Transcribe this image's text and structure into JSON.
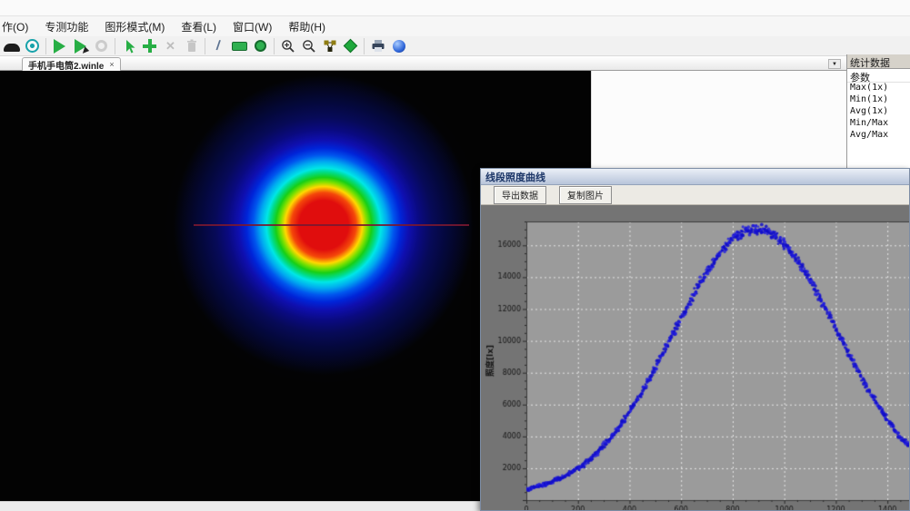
{
  "menu": {
    "items": [
      {
        "label": "作(O)"
      },
      {
        "label": "专测功能"
      },
      {
        "label": "图形模式(M)"
      },
      {
        "label": "查看(L)"
      },
      {
        "label": "窗口(W)"
      },
      {
        "label": "帮助(H)"
      }
    ]
  },
  "toolbar": {
    "icons": [
      "device-icon",
      "record-target-icon",
      "play-icon",
      "play-cursor-icon",
      "stop-icon",
      "cursor-arrow-icon",
      "plus-icon",
      "x-icon",
      "trash-icon",
      "line-tool-icon",
      "rectangle-tool-icon",
      "ellipse-tool-icon",
      "zoom-in-icon",
      "zoom-out-icon",
      "grid-3d-icon",
      "diamond-icon",
      "printer-icon",
      "globe-icon"
    ]
  },
  "tabbar": {
    "tab": {
      "label": "手机手电筒2.winle",
      "close": "×"
    }
  },
  "stats": {
    "title": "统计数据",
    "column_header": "参数",
    "rows": [
      "Max(1x)",
      "Min(1x)",
      "Avg(1x)",
      "Min/Max",
      "Avg/Max"
    ]
  },
  "beam_view": {
    "background": "#000000",
    "colormap": [
      "#ff0000",
      "#ff8000",
      "#ffff00",
      "#00c800",
      "#00ffff",
      "#0055ee",
      "#0000a0"
    ],
    "profile_line_color": "#7a1830"
  },
  "float_window": {
    "title": "线段照度曲线",
    "buttons": [
      {
        "label": "导出数据"
      },
      {
        "label": "复制图片"
      }
    ]
  },
  "colors": {
    "chart_background": "#747474",
    "plot_background": "#9b9b9b",
    "grid": "#ffffff",
    "scatter": "#1a12c8",
    "window_titlebar": "#b7c4da"
  },
  "chart_data": {
    "type": "scatter",
    "title": "线段照度曲线",
    "xlabel": "",
    "ylabel": "照度[lx]",
    "xlim": [
      0,
      1484
    ],
    "ylim": [
      0,
      17500
    ],
    "x_ticks": [
      0,
      200,
      400,
      600,
      800,
      1000,
      1200,
      1400
    ],
    "y_ticks": [
      2000,
      4000,
      6000,
      8000,
      10000,
      12000,
      14000,
      16000
    ],
    "grid": true,
    "legend": false,
    "marker_color": "#1a12c8",
    "points": [
      [
        0,
        700
      ],
      [
        40,
        843
      ],
      [
        80,
        1028
      ],
      [
        120,
        1273
      ],
      [
        160,
        1587
      ],
      [
        200,
        1983
      ],
      [
        240,
        2472
      ],
      [
        280,
        3065
      ],
      [
        320,
        3769
      ],
      [
        360,
        4587
      ],
      [
        400,
        5522
      ],
      [
        440,
        6563
      ],
      [
        480,
        7700
      ],
      [
        520,
        8909
      ],
      [
        560,
        10163
      ],
      [
        600,
        11427
      ],
      [
        640,
        12658
      ],
      [
        680,
        13815
      ],
      [
        720,
        14852
      ],
      [
        760,
        15727
      ],
      [
        800,
        16402
      ],
      [
        840,
        16848
      ],
      [
        880,
        17042
      ],
      [
        920,
        16977
      ],
      [
        960,
        16655
      ],
      [
        1000,
        16092
      ],
      [
        1040,
        15313
      ],
      [
        1080,
        14351
      ],
      [
        1120,
        13249
      ],
      [
        1160,
        12048
      ],
      [
        1200,
        10796
      ],
      [
        1240,
        9533
      ],
      [
        1280,
        8296
      ],
      [
        1320,
        7120
      ],
      [
        1360,
        6030
      ],
      [
        1400,
        5039
      ],
      [
        1440,
        4163
      ],
      [
        1484,
        3402
      ]
    ]
  }
}
